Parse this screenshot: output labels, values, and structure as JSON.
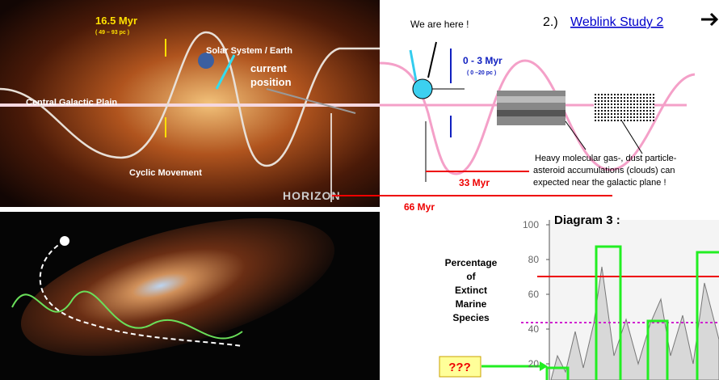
{
  "top_image": {
    "period_label": "16.5 Myr",
    "period_range": "( 49 – 93 pc )",
    "object_label": "Solar System / Earth",
    "position_label": [
      "current",
      "position"
    ],
    "plane_label": "Central Galactic Plain",
    "movement_label": "Cyclic Movement",
    "logo": "HORIZON"
  },
  "schematic": {
    "here_label": "We are here !",
    "range_label": "0 - 3 Myr",
    "range_pc": "( 0 –20 pc )",
    "half_period": "33 Myr",
    "full_period": "66 Myr",
    "cloud_note": [
      "Heavy molecular gas-, dust particle-",
      "asteroid accumulations (clouds) can",
      "expected near the galactic plane !"
    ]
  },
  "links": [
    {
      "number": "2.)",
      "text": "Weblink Study 2"
    }
  ],
  "diagram": {
    "title": "Diagram 3 :",
    "y_label": [
      "Percentage",
      "of",
      "Extinct",
      "Marine",
      "Species"
    ],
    "yticks": [
      100,
      80,
      60,
      40,
      20
    ],
    "unknown_marker": "???"
  }
}
